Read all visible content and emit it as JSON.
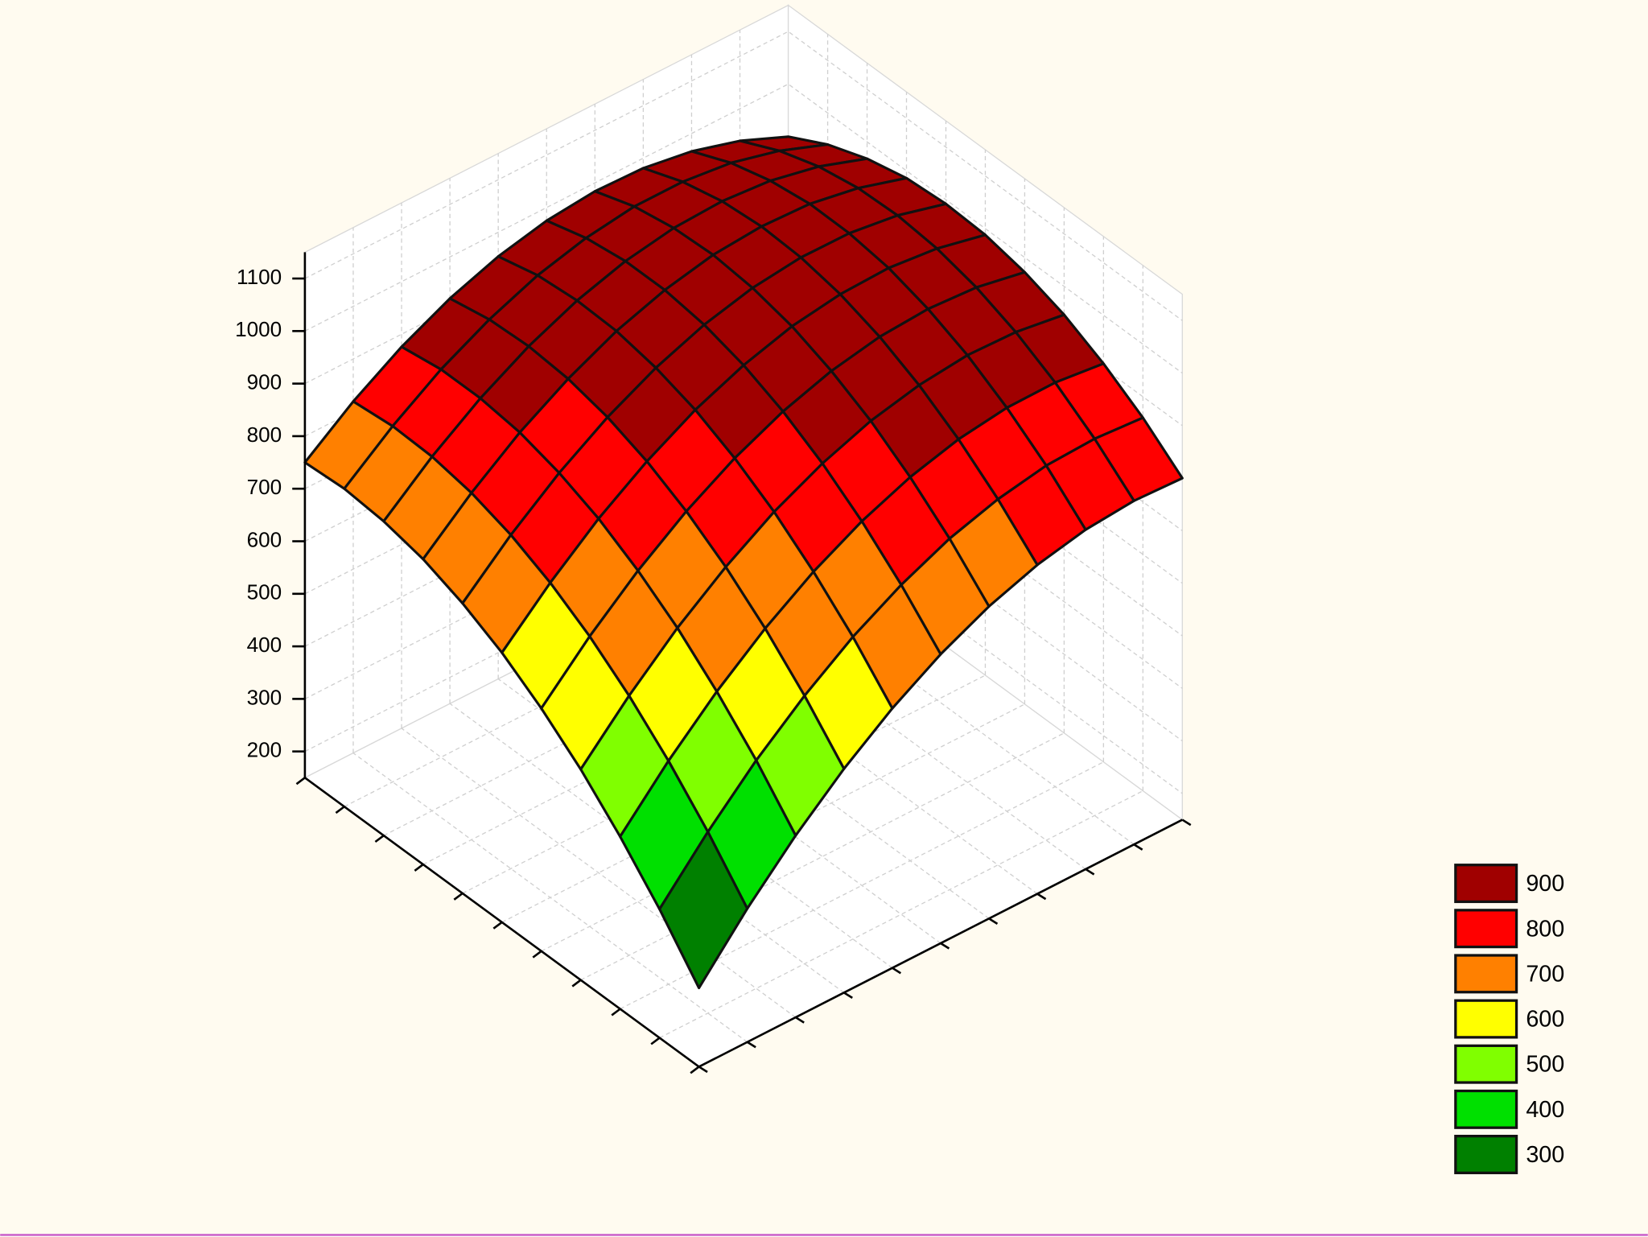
{
  "chart_data": {
    "type": "surface",
    "z": [
      [
        300,
        404,
        496,
        576,
        644,
        700,
        744,
        776,
        796,
        804,
        800
      ],
      [
        395,
        495,
        584,
        660,
        725,
        777,
        818,
        846,
        863,
        867,
        860
      ],
      [
        478,
        575,
        660,
        733,
        794,
        843,
        880,
        905,
        918,
        919,
        908
      ],
      [
        551,
        644,
        726,
        795,
        853,
        898,
        932,
        953,
        963,
        960,
        946
      ],
      [
        612,
        702,
        780,
        846,
        900,
        942,
        972,
        990,
        996,
        990,
        972
      ],
      [
        663,
        749,
        824,
        886,
        937,
        975,
        1002,
        1016,
        1019,
        1009,
        988
      ],
      [
        702,
        785,
        856,
        915,
        962,
        997,
        1020,
        1031,
        1030,
        1017,
        992
      ],
      [
        731,
        810,
        878,
        933,
        977,
        1008,
        1028,
        1035,
        1031,
        1014,
        986
      ],
      [
        748,
        824,
        888,
        940,
        980,
        1008,
        1024,
        1028,
        1020,
        1000,
        968
      ],
      [
        755,
        827,
        888,
        936,
        973,
        997,
        1010,
        1010,
        999,
        975,
        940
      ],
      [
        750,
        819,
        876,
        921,
        954,
        975,
        984,
        981,
        966,
        939,
        900
      ]
    ],
    "zlim": [
      150,
      1150
    ],
    "zticks": [
      200,
      300,
      400,
      500,
      600,
      700,
      800,
      900,
      1000,
      1100
    ],
    "grid": true,
    "legend_position": "lower right",
    "levels": [
      {
        "value": 900,
        "color": "#a00000"
      },
      {
        "value": 800,
        "color": "#ff0000"
      },
      {
        "value": 700,
        "color": "#ff8000"
      },
      {
        "value": 600,
        "color": "#ffff00"
      },
      {
        "value": 500,
        "color": "#80ff00"
      },
      {
        "value": 400,
        "color": "#00e000"
      },
      {
        "value": 300,
        "color": "#008000"
      }
    ]
  }
}
